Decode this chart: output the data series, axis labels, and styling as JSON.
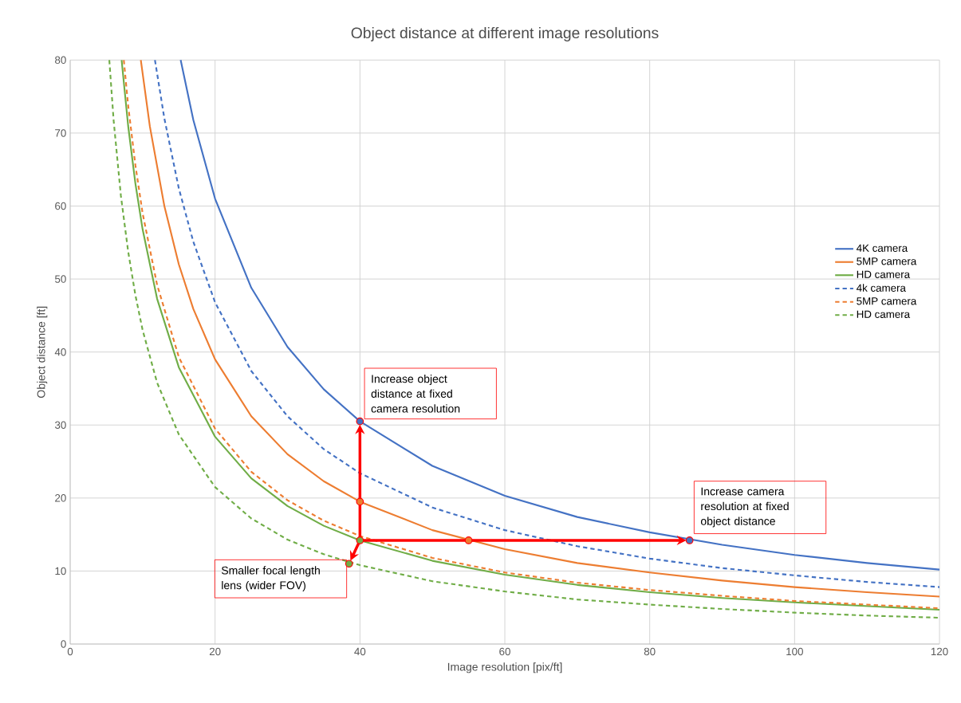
{
  "chart_data": {
    "type": "line",
    "title": "Object distance at different image resolutions",
    "xlabel": "Image resolution [pix/ft]",
    "ylabel": "Object distance [ft]",
    "xlim": [
      0,
      120
    ],
    "ylim": [
      0,
      80
    ],
    "xticks": [
      0,
      20,
      40,
      60,
      80,
      100,
      120
    ],
    "yticks": [
      0,
      10,
      20,
      30,
      40,
      50,
      60,
      70,
      80
    ],
    "grid": true,
    "legend": "right",
    "series": [
      {
        "name": "4K camera",
        "color": "#4472c4",
        "line_style": "solid",
        "x": [
          15.25,
          17,
          20,
          25,
          30,
          35,
          40,
          50,
          60,
          70,
          80,
          90,
          100,
          110,
          120
        ],
        "values": [
          80,
          71.8,
          61,
          48.8,
          40.7,
          34.9,
          30.5,
          24.4,
          20.3,
          17.4,
          15.3,
          13.6,
          12.2,
          11.1,
          10.2
        ]
      },
      {
        "name": "5MP camera",
        "color": "#ed7d31",
        "line_style": "solid",
        "x": [
          9.75,
          11,
          13,
          15,
          17,
          20,
          25,
          30,
          35,
          40,
          50,
          60,
          70,
          80,
          90,
          100,
          110,
          120
        ],
        "values": [
          80,
          70.9,
          60,
          52,
          45.9,
          39,
          31.2,
          26,
          22.3,
          19.5,
          15.6,
          13,
          11.1,
          9.8,
          8.7,
          7.8,
          7.1,
          6.5
        ]
      },
      {
        "name": "HD camera",
        "color": "#70ad47",
        "line_style": "solid",
        "x": [
          7.1,
          8,
          9,
          10,
          12,
          15,
          20,
          25,
          30,
          35,
          40,
          50,
          60,
          70,
          80,
          90,
          100,
          110,
          120
        ],
        "values": [
          80,
          71,
          63.1,
          56.8,
          47.3,
          37.9,
          28.4,
          22.7,
          18.9,
          16.2,
          14.2,
          11.4,
          9.5,
          8.1,
          7.1,
          6.3,
          5.7,
          5.2,
          4.7
        ]
      },
      {
        "name": "4k camera",
        "color": "#4472c4",
        "line_style": "dashed",
        "x": [
          11.7,
          13,
          15,
          17,
          20,
          25,
          30,
          35,
          40,
          50,
          60,
          70,
          80,
          90,
          100,
          110,
          120
        ],
        "values": [
          80,
          72,
          62.4,
          55.1,
          46.8,
          37.4,
          31.2,
          26.7,
          23.4,
          18.7,
          15.6,
          13.4,
          11.7,
          10.4,
          9.4,
          8.5,
          7.8
        ]
      },
      {
        "name": "5MP camera",
        "color": "#ed7d31",
        "line_style": "dashed",
        "x": [
          7.4,
          8,
          9,
          10,
          12,
          15,
          20,
          25,
          30,
          35,
          40,
          50,
          60,
          70,
          80,
          90,
          100,
          110,
          120
        ],
        "values": [
          80,
          73.8,
          65.6,
          59,
          49.2,
          39.3,
          29.5,
          23.6,
          19.7,
          16.9,
          14.8,
          11.8,
          9.8,
          8.4,
          7.4,
          6.6,
          5.9,
          5.4,
          4.9
        ]
      },
      {
        "name": "HD camera",
        "color": "#70ad47",
        "line_style": "dashed",
        "x": [
          5.4,
          6,
          7,
          8,
          9,
          10,
          12,
          15,
          20,
          25,
          30,
          35,
          40,
          50,
          60,
          70,
          80,
          90,
          100,
          110,
          120
        ],
        "values": [
          80,
          71.7,
          61.4,
          53.8,
          47.8,
          43,
          35.8,
          28.7,
          21.5,
          17.2,
          14.3,
          12.3,
          10.8,
          8.6,
          7.2,
          6.1,
          5.4,
          4.8,
          4.3,
          3.9,
          3.6
        ]
      },
      {
        "type": "scatter",
        "marker": "circle",
        "x": [
          40,
          40,
          40,
          55,
          85.5,
          38.5
        ],
        "values": [
          30.5,
          19.5,
          14.2,
          14.2,
          14.2,
          11
        ],
        "colors": [
          "#4472c4",
          "#ed7d31",
          "#70ad47",
          "#ed7d31",
          "#4472c4",
          "#70ad47"
        ]
      }
    ],
    "annotations": [
      {
        "text": "Increase object distance at fixed camera resolution",
        "x": 40,
        "y": 30.5
      },
      {
        "text": "Increase camera resolution at fixed object distance",
        "x": 85.5,
        "y": 14.2
      },
      {
        "text": "Smaller focal length lens (wider FOV)",
        "x": 38.5,
        "y": 11
      }
    ]
  }
}
